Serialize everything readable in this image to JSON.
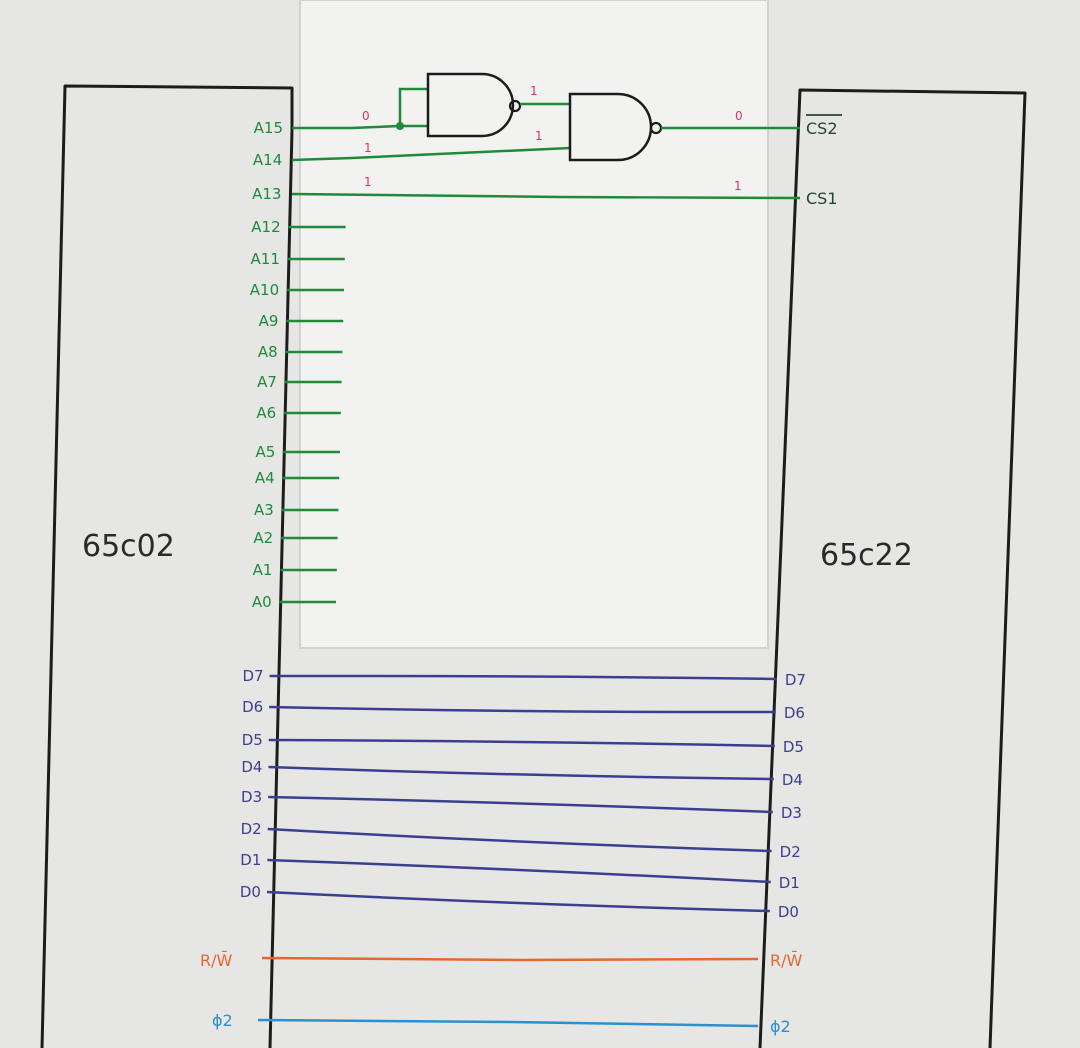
{
  "chips": {
    "cpu": {
      "name": "65c02"
    },
    "via": {
      "name": "65c22"
    }
  },
  "address_pins": [
    "A15",
    "A14",
    "A13",
    "A12",
    "A11",
    "A10",
    "A9",
    "A8",
    "A7",
    "A6",
    "A5",
    "A4",
    "A3",
    "A2",
    "A1",
    "A0"
  ],
  "cpu_data_pins": [
    "D7",
    "D6",
    "D5",
    "D4",
    "D3",
    "D2",
    "D1",
    "D0"
  ],
  "via_data_pins": [
    "D7",
    "D6",
    "D5",
    "D4",
    "D3",
    "D2",
    "D1",
    "D0"
  ],
  "control": {
    "rw_cpu": "R/W̄",
    "rw_via": "R/W̄",
    "phi_cpu": "ϕ2",
    "phi_via": "ϕ2"
  },
  "chip_selects": {
    "cs2": "CS2",
    "cs1": "CS1"
  },
  "logic_levels": {
    "a15": "0",
    "a14": "1",
    "a13": "1",
    "nand1_out": "1",
    "nand2_in": "1",
    "cs2": "0",
    "cs1": "1"
  },
  "colors": {
    "address": "#1f8a3a",
    "data": "#3b3f8f",
    "rw": "#e2692f",
    "clock": "#2b8fd0",
    "logic_level": "#e0306e",
    "outline": "#1c1c1c"
  }
}
